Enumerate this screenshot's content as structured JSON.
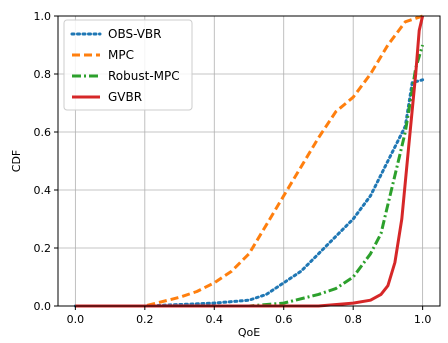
{
  "chart_data": {
    "type": "line",
    "xlabel": "QoE",
    "ylabel": "CDF",
    "xlim": [
      -0.05,
      1.05
    ],
    "ylim": [
      0,
      1
    ],
    "x_ticks": [
      0.0,
      0.2,
      0.4,
      0.6,
      0.8,
      1.0
    ],
    "y_ticks": [
      0.0,
      0.2,
      0.4,
      0.6,
      0.8,
      1.0
    ],
    "x_tick_labels": [
      "0.0",
      "0.2",
      "0.4",
      "0.6",
      "0.8",
      "1.0"
    ],
    "y_tick_labels": [
      "0.0",
      "0.2",
      "0.4",
      "0.6",
      "0.8",
      "1.0"
    ],
    "grid": true,
    "legend_position": "top-left",
    "series": [
      {
        "name": "OBS-VBR",
        "color": "#1f77b4",
        "style": "dotted",
        "x": [
          0.0,
          0.2,
          0.4,
          0.5,
          0.55,
          0.6,
          0.65,
          0.7,
          0.75,
          0.8,
          0.85,
          0.9,
          0.95,
          0.97,
          1.0
        ],
        "y": [
          0.0,
          0.0,
          0.01,
          0.02,
          0.04,
          0.08,
          0.12,
          0.18,
          0.24,
          0.3,
          0.38,
          0.5,
          0.62,
          0.77,
          0.78
        ]
      },
      {
        "name": "MPC",
        "color": "#ff7f0e",
        "style": "dashed",
        "x": [
          0.0,
          0.2,
          0.3,
          0.35,
          0.4,
          0.45,
          0.5,
          0.55,
          0.6,
          0.65,
          0.7,
          0.75,
          0.8,
          0.85,
          0.9,
          0.95,
          1.0
        ],
        "y": [
          0.0,
          0.0,
          0.03,
          0.05,
          0.08,
          0.12,
          0.18,
          0.28,
          0.38,
          0.48,
          0.58,
          0.67,
          0.72,
          0.8,
          0.9,
          0.98,
          1.0
        ]
      },
      {
        "name": "Robust-MPC",
        "color": "#2ca02c",
        "style": "dashdot",
        "x": [
          0.0,
          0.5,
          0.6,
          0.7,
          0.75,
          0.8,
          0.85,
          0.88,
          0.9,
          0.92,
          0.95,
          0.98,
          1.0
        ],
        "y": [
          0.0,
          0.0,
          0.01,
          0.04,
          0.06,
          0.1,
          0.18,
          0.25,
          0.35,
          0.45,
          0.6,
          0.82,
          0.9
        ]
      },
      {
        "name": "GVBR",
        "color": "#d62728",
        "style": "solid",
        "x": [
          0.0,
          0.7,
          0.8,
          0.85,
          0.88,
          0.9,
          0.92,
          0.94,
          0.96,
          0.98,
          0.99,
          1.0
        ],
        "y": [
          0.0,
          0.0,
          0.01,
          0.02,
          0.04,
          0.07,
          0.15,
          0.3,
          0.55,
          0.8,
          0.95,
          1.0
        ]
      }
    ]
  }
}
